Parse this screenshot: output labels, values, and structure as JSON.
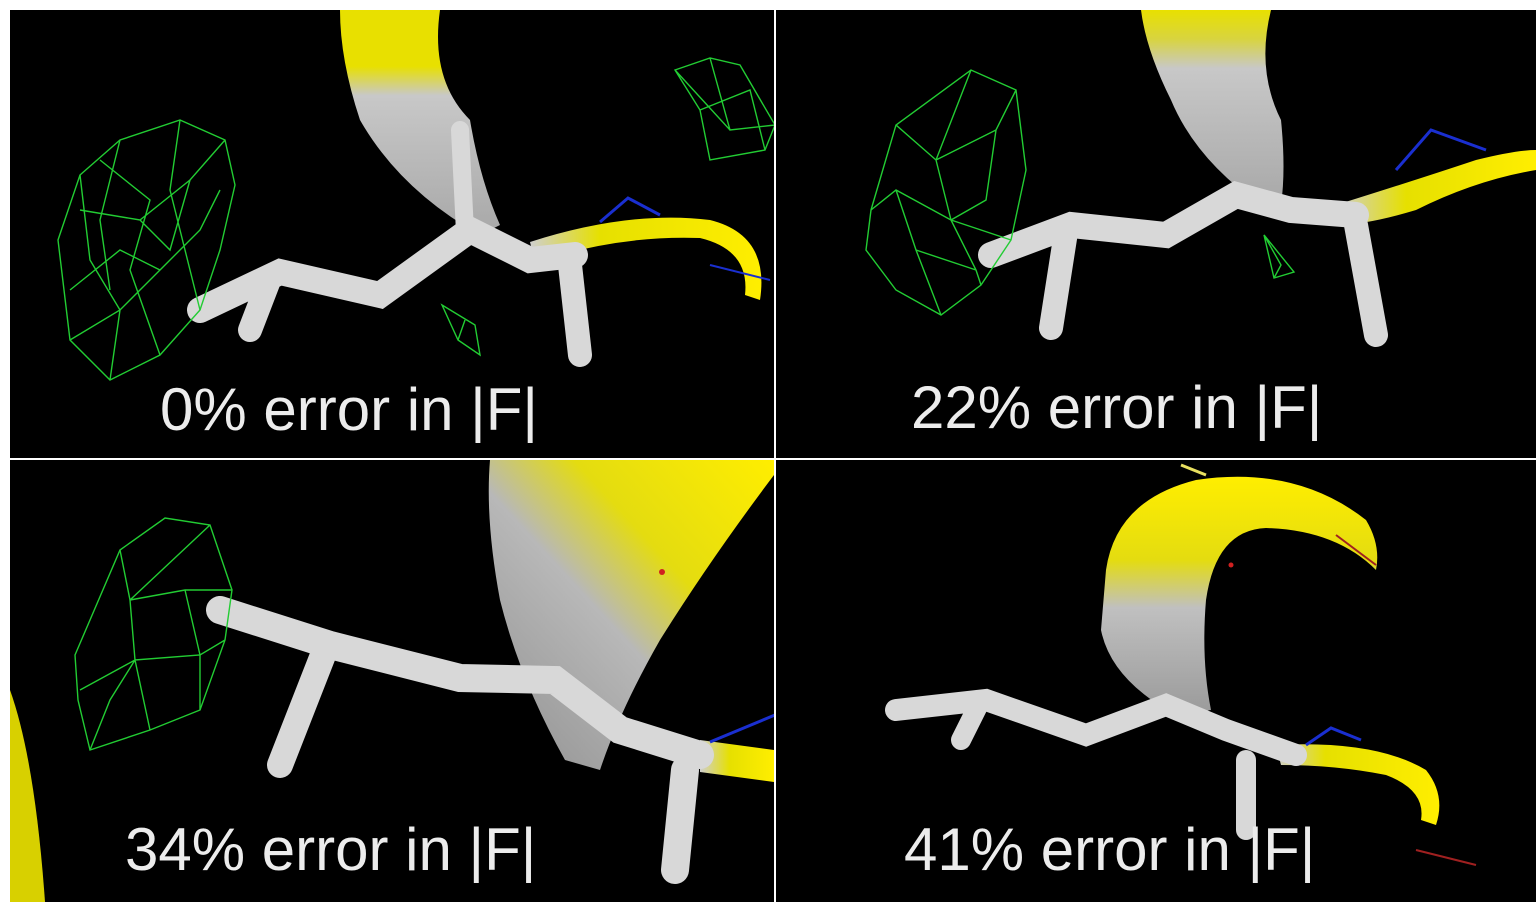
{
  "panels": [
    {
      "id": "p1",
      "caption": "0% error in |F|"
    },
    {
      "id": "p2",
      "caption": "22% error in |F|"
    },
    {
      "id": "p3",
      "caption": "34% error in |F|"
    },
    {
      "id": "p4",
      "caption": "41% error in |F|"
    }
  ],
  "colors": {
    "background": "#000000",
    "ribbon_yellow": "#ffee00",
    "ribbon_grey": "#c8c8c8",
    "stick": "#d8d8d8",
    "mesh": "#22cc33",
    "bond_blue": "#1a2fd0",
    "atom_red": "#d02020",
    "caption_text": "#ececec"
  }
}
